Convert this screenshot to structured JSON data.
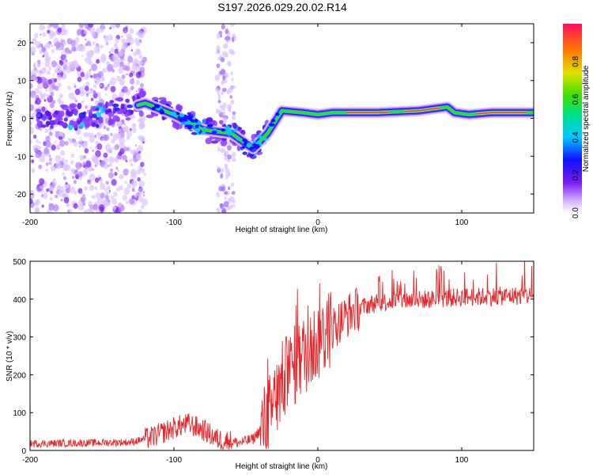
{
  "title": "S197.2026.029.20.02.R14",
  "chart_data": [
    {
      "type": "heatmap",
      "name": "spectrogram",
      "xlabel": "Height of straight line (km)",
      "ylabel": "Frequency (Hz)",
      "xlim": [
        -200,
        150
      ],
      "ylim": [
        -25,
        25
      ],
      "xticks": [
        -200,
        -100,
        0,
        100
      ],
      "yticks": [
        -20,
        -10,
        0,
        10,
        20
      ],
      "colorbar": {
        "label": "Normalized spectral amplitude",
        "range": [
          0,
          1
        ],
        "ticks": [
          "0.0",
          "0.2",
          "0.4",
          "0.6",
          "0.8"
        ]
      },
      "ridge": [
        {
          "x": -190,
          "y": 0
        },
        {
          "x": -150,
          "y": 1
        },
        {
          "x": -120,
          "y": 4
        },
        {
          "x": -100,
          "y": 1
        },
        {
          "x": -80,
          "y": -3
        },
        {
          "x": -60,
          "y": -4
        },
        {
          "x": -45,
          "y": -8
        },
        {
          "x": -35,
          "y": -4
        },
        {
          "x": -25,
          "y": 2
        },
        {
          "x": -10,
          "y": 1.5
        },
        {
          "x": 0,
          "y": 1
        },
        {
          "x": 10,
          "y": 1.5
        },
        {
          "x": 40,
          "y": 1.5
        },
        {
          "x": 70,
          "y": 2
        },
        {
          "x": 80,
          "y": 2.5
        },
        {
          "x": 90,
          "y": 3
        },
        {
          "x": 95,
          "y": 1.5
        },
        {
          "x": 105,
          "y": 1
        },
        {
          "x": 120,
          "y": 1.5
        },
        {
          "x": 150,
          "y": 1.5
        }
      ]
    },
    {
      "type": "line",
      "name": "snr",
      "xlabel": "Height of straight line (km)",
      "ylabel": "SNR (10 * v/v)",
      "xlim": [
        -200,
        150
      ],
      "ylim": [
        0,
        500
      ],
      "xticks": [
        -200,
        -100,
        0,
        100
      ],
      "yticks": [
        0,
        100,
        200,
        300,
        400,
        500
      ],
      "color": "#e8262a",
      "envelope": [
        {
          "x": -200,
          "y": 18
        },
        {
          "x": -160,
          "y": 20
        },
        {
          "x": -130,
          "y": 22
        },
        {
          "x": -115,
          "y": 35
        },
        {
          "x": -100,
          "y": 60
        },
        {
          "x": -90,
          "y": 70
        },
        {
          "x": -80,
          "y": 55
        },
        {
          "x": -70,
          "y": 30
        },
        {
          "x": -55,
          "y": 20
        },
        {
          "x": -45,
          "y": 30
        },
        {
          "x": -35,
          "y": 80
        },
        {
          "x": -25,
          "y": 180
        },
        {
          "x": -15,
          "y": 230
        },
        {
          "x": -5,
          "y": 270
        },
        {
          "x": 5,
          "y": 310
        },
        {
          "x": 15,
          "y": 340
        },
        {
          "x": 25,
          "y": 370
        },
        {
          "x": 35,
          "y": 385
        },
        {
          "x": 50,
          "y": 395
        },
        {
          "x": 80,
          "y": 400
        },
        {
          "x": 100,
          "y": 405
        },
        {
          "x": 150,
          "y": 410
        }
      ]
    }
  ]
}
